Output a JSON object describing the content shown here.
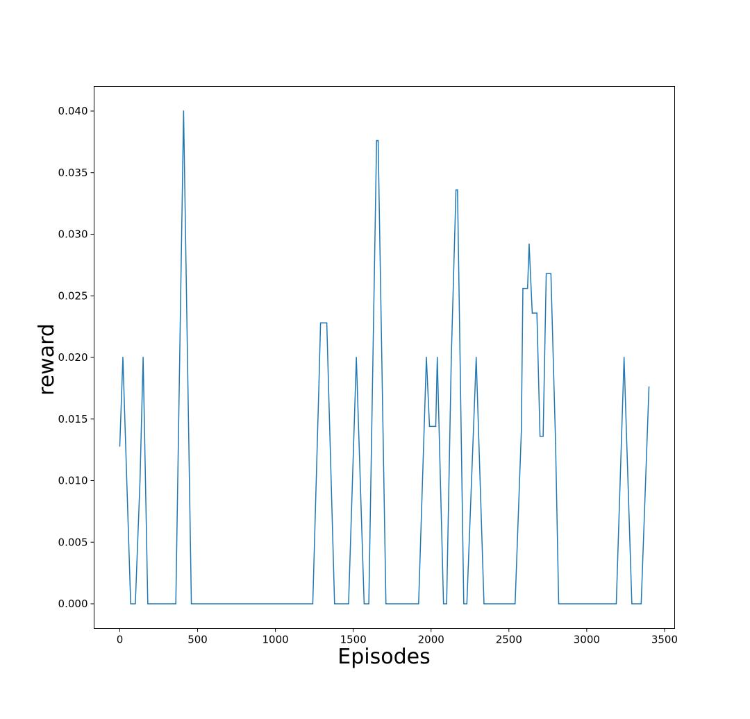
{
  "chart_data": {
    "type": "line",
    "title": "",
    "xlabel": "Episodes",
    "ylabel": "reward",
    "xlim": [
      -165,
      3565
    ],
    "ylim": [
      -0.002,
      0.042
    ],
    "xticks": [
      0,
      500,
      1000,
      1500,
      2000,
      2500,
      3000,
      3500
    ],
    "xtick_labels": [
      "0",
      "500",
      "1000",
      "1500",
      "2000",
      "2500",
      "3000",
      "3500"
    ],
    "yticks": [
      0.0,
      0.005,
      0.01,
      0.015,
      0.02,
      0.025,
      0.03,
      0.035,
      0.04
    ],
    "ytick_labels": [
      "0.000",
      "0.005",
      "0.010",
      "0.015",
      "0.020",
      "0.025",
      "0.030",
      "0.035",
      "0.040"
    ],
    "grid": false,
    "series": [
      {
        "color": "#1f77b4",
        "x": [
          0,
          20,
          70,
          100,
          130,
          150,
          180,
          200,
          360,
          410,
          460,
          1240,
          1280,
          1290,
          1330,
          1380,
          1470,
          1520,
          1570,
          1600,
          1650,
          1655,
          1660,
          1710,
          1920,
          1970,
          1990,
          2030,
          2040,
          2080,
          2100,
          2130,
          2160,
          2170,
          2210,
          2230,
          2290,
          2340,
          2540,
          2580,
          2590,
          2620,
          2630,
          2650,
          2680,
          2700,
          2720,
          2740,
          2770,
          2800,
          2820,
          3190,
          3240,
          3290,
          3350,
          3400
        ],
        "y": [
          0.0128,
          0.02,
          0.0,
          0.0,
          0.01,
          0.02,
          0.0,
          0.0,
          0.0,
          0.04,
          0.0,
          0.0,
          0.018,
          0.0228,
          0.0228,
          0.0,
          0.0,
          0.02,
          0.0,
          0.0,
          0.0376,
          0.0376,
          0.0376,
          0.0,
          0.0,
          0.02,
          0.0144,
          0.0144,
          0.02,
          0.0,
          0.0,
          0.02,
          0.0336,
          0.0336,
          0.0,
          0.0,
          0.02,
          0.0,
          0.0,
          0.014,
          0.0256,
          0.0256,
          0.0292,
          0.0236,
          0.0236,
          0.0136,
          0.0136,
          0.0268,
          0.0268,
          0.013,
          0.0,
          0.0,
          0.02,
          0.0,
          0.0,
          0.0176
        ]
      }
    ]
  }
}
